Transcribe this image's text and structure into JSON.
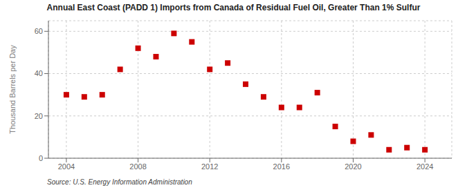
{
  "chart_data": {
    "type": "scatter",
    "title": "Annual East Coast (PADD 1) Imports from Canada of Residual Fuel Oil, Greater Than 1% Sulfur",
    "y_label": "Thousand Barrels per Day",
    "annotations": [
      "Source: U.S. Energy Information Administration"
    ],
    "x": [
      2004,
      2005,
      2006,
      2007,
      2008,
      2009,
      2010,
      2011,
      2012,
      2013,
      2014,
      2015,
      2016,
      2017,
      2018,
      2019,
      2020,
      2021,
      2022,
      2023,
      2024
    ],
    "values": [
      30,
      29,
      30,
      42,
      52,
      48,
      59,
      55,
      42,
      45,
      35,
      29,
      24,
      24,
      31,
      15,
      8,
      11,
      4,
      5,
      4
    ],
    "color": "#cc0000",
    "marker": "square",
    "xlim": [
      2003.0,
      2025.5
    ],
    "ylim": [
      0,
      65
    ],
    "xticks": [
      2004,
      2008,
      2012,
      2016,
      2020,
      2024
    ],
    "yticks": [
      0,
      20,
      40,
      60
    ],
    "grid": true
  }
}
